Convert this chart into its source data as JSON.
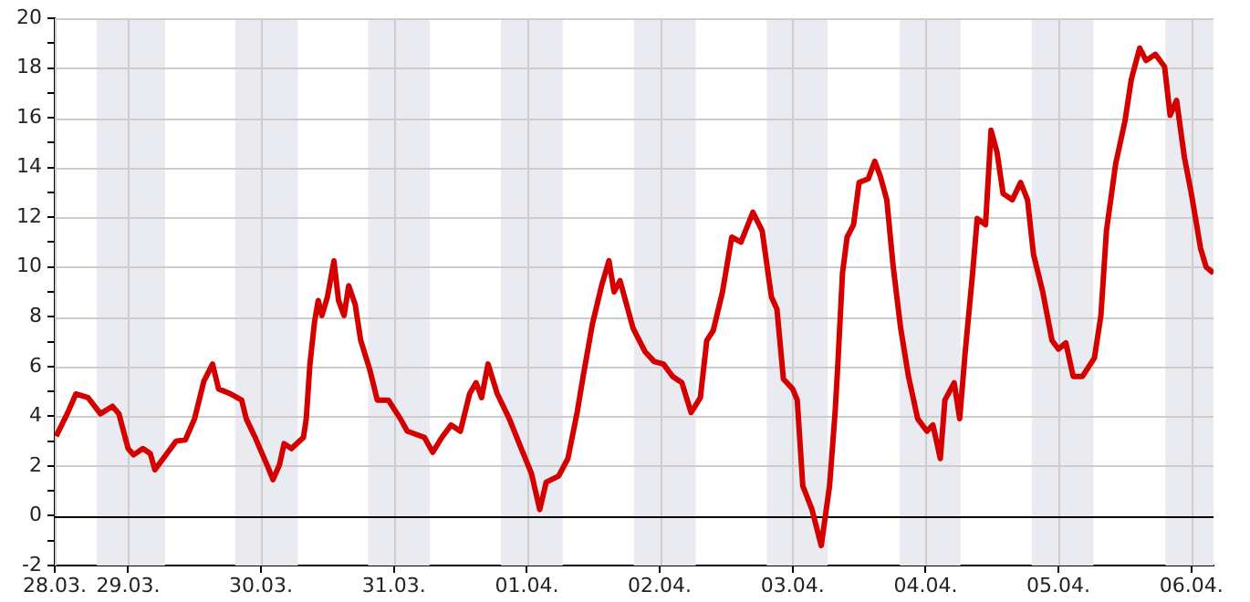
{
  "chart_data": {
    "type": "line",
    "color": "#d40000",
    "marker": "none",
    "line_style": "solid",
    "grid": true,
    "x": [
      "--03-28T11:00",
      "--03-28T13:00",
      "--03-28T14:35",
      "--03-28T16:45",
      "--03-28T19:00",
      "--03-28T21:10",
      "--03-28T22:20",
      "--03-29T00:00",
      "--03-29T01:00",
      "--03-29T02:40",
      "--03-29T04:00",
      "--03-29T04:50",
      "--03-29T06:00",
      "--03-29T08:40",
      "--03-29T10:20",
      "--03-29T12:00",
      "--03-29T13:40",
      "--03-29T15:15",
      "--03-29T16:20",
      "--03-29T18:30",
      "--03-29T20:30",
      "--03-29T21:20",
      "--03-29T22:50",
      "--03-30T01:10",
      "--03-30T02:10",
      "--03-30T03:20",
      "--03-30T04:10",
      "--03-30T05:30",
      "--03-30T07:40",
      "--03-30T08:10",
      "--03-30T08:50",
      "--03-30T09:40",
      "--03-30T10:20",
      "--03-30T11:00",
      "--03-30T12:00",
      "--03-30T13:10",
      "--03-30T14:00",
      "--03-30T15:00",
      "--03-30T15:50",
      "--03-30T17:00",
      "--03-30T18:00",
      "--03-30T19:40",
      "--03-30T21:00",
      "--03-30T23:00",
      "--03-31T01:10",
      "--03-31T02:25",
      "--03-31T05:30",
      "--03-31T07:00",
      "--03-31T08:40",
      "--03-31T10:20",
      "--03-31T12:00",
      "--03-31T13:40",
      "--03-31T14:50",
      "--03-31T15:50",
      "--03-31T17:00",
      "--03-31T18:40",
      "--03-31T20:50",
      "--03-31T23:00",
      "--04-01T00:50",
      "--04-01T02:20",
      "--04-01T03:30",
      "--04-01T05:45",
      "--04-01T07:25",
      "--04-01T09:05",
      "--04-01T10:10",
      "--04-01T11:50",
      "--04-01T13:30",
      "--04-01T14:50",
      "--04-01T15:45",
      "--04-01T16:50",
      "--04-01T19:10",
      "--04-01T21:20",
      "--04-01T23:00",
      "--04-02T00:40",
      "--04-02T02:20",
      "--04-02T04:00",
      "--04-02T05:40",
      "--04-02T07:20",
      "--04-02T08:30",
      "--04-02T09:40",
      "--04-02T11:20",
      "--04-02T13:00",
      "--04-02T14:40",
      "--04-02T16:50",
      "--04-02T18:30",
      "--04-02T20:10",
      "--04-02T21:10",
      "--04-02T22:20",
      "--04-03T00:00",
      "--04-03T00:50",
      "--04-03T01:50",
      "--04-03T03:30",
      "--04-03T05:10",
      "--04-03T06:40",
      "--04-03T07:40",
      "--04-03T08:10",
      "--04-03T09:00",
      "--04-03T09:50",
      "--04-03T11:00",
      "--04-03T12:00",
      "--04-03T13:40",
      "--04-03T14:50",
      "--04-03T15:50",
      "--04-03T17:00",
      "--04-03T18:10",
      "--04-03T19:30",
      "--04-03T20:55",
      "--04-03T22:35",
      "--04-04T00:15",
      "--04-04T01:20",
      "--04-04T02:40",
      "--04-04T03:30",
      "--04-04T05:10",
      "--04-04T06:10",
      "--04-04T07:10",
      "--04-04T08:30",
      "--04-04T09:20",
      "--04-04T10:50",
      "--04-04T11:50",
      "--04-04T12:55",
      "--04-04T14:00",
      "--04-04T15:40",
      "--04-04T17:10",
      "--04-04T18:25",
      "--04-04T19:30",
      "--04-04T21:10",
      "--04-04T22:50",
      "--04-05T00:00",
      "--04-05T01:20",
      "--04-05T02:40",
      "--04-05T04:20",
      "--04-05T06:30",
      "--04-05T07:40",
      "--04-05T08:40",
      "--04-05T10:20",
      "--04-05T12:00",
      "--04-05T13:10",
      "--04-05T14:40",
      "--04-05T15:50",
      "--04-05T17:30",
      "--04-05T19:10",
      "--04-05T20:10",
      "--04-05T21:20",
      "--04-05T22:45",
      "--04-06T00:00",
      "--04-06T01:40",
      "--04-06T02:40",
      "--04-06T04:00"
    ],
    "values": [
      3.2,
      4.1,
      4.9,
      4.75,
      4.1,
      4.4,
      4.1,
      2.7,
      2.45,
      2.7,
      2.5,
      1.85,
      2.2,
      3.0,
      3.05,
      3.9,
      5.4,
      6.1,
      5.1,
      4.9,
      4.65,
      3.9,
      3.2,
      2.0,
      1.45,
      2.05,
      2.9,
      2.7,
      3.15,
      3.9,
      6.1,
      7.8,
      8.65,
      8.05,
      8.8,
      10.25,
      8.65,
      8.05,
      9.25,
      8.5,
      7.05,
      5.85,
      4.65,
      4.65,
      3.9,
      3.4,
      3.15,
      2.55,
      3.15,
      3.65,
      3.4,
      4.9,
      5.35,
      4.75,
      6.1,
      4.9,
      3.9,
      2.7,
      1.7,
      0.25,
      1.35,
      1.6,
      2.3,
      4.15,
      5.6,
      7.7,
      9.25,
      10.25,
      9.0,
      9.45,
      7.55,
      6.6,
      6.2,
      6.1,
      5.6,
      5.35,
      4.15,
      4.75,
      7.05,
      7.45,
      9.0,
      11.2,
      11.0,
      12.2,
      11.45,
      8.8,
      8.3,
      5.5,
      5.1,
      4.65,
      1.2,
      0.25,
      -1.2,
      1.2,
      4.15,
      6.1,
      9.75,
      11.2,
      11.7,
      13.4,
      13.55,
      14.25,
      13.65,
      12.7,
      10.0,
      7.55,
      5.6,
      3.9,
      3.4,
      3.65,
      2.3,
      4.65,
      5.35,
      3.9,
      6.6,
      9.75,
      11.95,
      11.7,
      15.5,
      14.6,
      12.95,
      12.7,
      13.4,
      12.7,
      10.5,
      9.0,
      7.05,
      6.7,
      6.95,
      5.6,
      5.6,
      6.35,
      8.05,
      11.45,
      14.15,
      15.85,
      17.55,
      18.8,
      18.3,
      18.55,
      18.05,
      16.1,
      16.7,
      14.4,
      12.95,
      10.75,
      10.0,
      9.75
    ],
    "xlim": [
      "--03-28T10:45",
      "--04-06T04:00"
    ],
    "xticks": [
      {
        "value": "--03-28T10:45",
        "label": "28.03."
      },
      {
        "value": "--03-29",
        "label": "29.03."
      },
      {
        "value": "--03-30",
        "label": "30.03."
      },
      {
        "value": "--03-31",
        "label": "31.03."
      },
      {
        "value": "--04-01",
        "label": "01.04."
      },
      {
        "value": "--04-02",
        "label": "02.04."
      },
      {
        "value": "--04-03",
        "label": "03.04."
      },
      {
        "value": "--04-04",
        "label": "04.04."
      },
      {
        "value": "--04-05",
        "label": "05.04."
      },
      {
        "value": "--04-06",
        "label": "06.04."
      }
    ],
    "ylim": [
      -2,
      20
    ],
    "yticks": [
      -2,
      {
        "value": -1,
        "label": null
      },
      0,
      {
        "value": 1,
        "label": null
      },
      2,
      {
        "value": 3,
        "label": null
      },
      4,
      {
        "value": 5,
        "label": null
      },
      6,
      {
        "value": 7,
        "label": null
      },
      8,
      {
        "value": 9,
        "label": null
      },
      10,
      {
        "value": 11,
        "label": null
      },
      12,
      {
        "value": 13,
        "label": null
      },
      14,
      {
        "value": 15,
        "label": null
      },
      16,
      {
        "value": 17,
        "label": null
      },
      18,
      {
        "value": 19,
        "label": null
      },
      20
    ],
    "ref_lines": [
      {
        "axis": "y",
        "value": 0,
        "color": "#000000"
      }
    ],
    "bands": [
      {
        "axis": "x",
        "from": "--03-28T18:20",
        "to": "--03-29T06:40",
        "color": "#eaebf0"
      },
      {
        "axis": "x",
        "from": "--03-29T19:20",
        "to": "--03-30T06:40",
        "color": "#eaebf0"
      },
      {
        "axis": "x",
        "from": "--03-30T19:20",
        "to": "--03-31T06:30",
        "color": "#eaebf0"
      },
      {
        "axis": "x",
        "from": "--03-31T19:20",
        "to": "--04-01T06:30",
        "color": "#eaebf0"
      },
      {
        "axis": "x",
        "from": "--04-01T19:20",
        "to": "--04-02T06:30",
        "color": "#eaebf0"
      },
      {
        "axis": "x",
        "from": "--04-02T19:20",
        "to": "--04-03T06:20",
        "color": "#eaebf0"
      },
      {
        "axis": "x",
        "from": "--04-03T19:20",
        "to": "--04-04T06:20",
        "color": "#eaebf0"
      },
      {
        "axis": "x",
        "from": "--04-04T19:10",
        "to": "--04-05T06:20",
        "color": "#eaebf0"
      },
      {
        "axis": "x",
        "from": "--04-05T19:20",
        "to": "--04-06T04:00",
        "color": "#eaebf0"
      }
    ]
  }
}
